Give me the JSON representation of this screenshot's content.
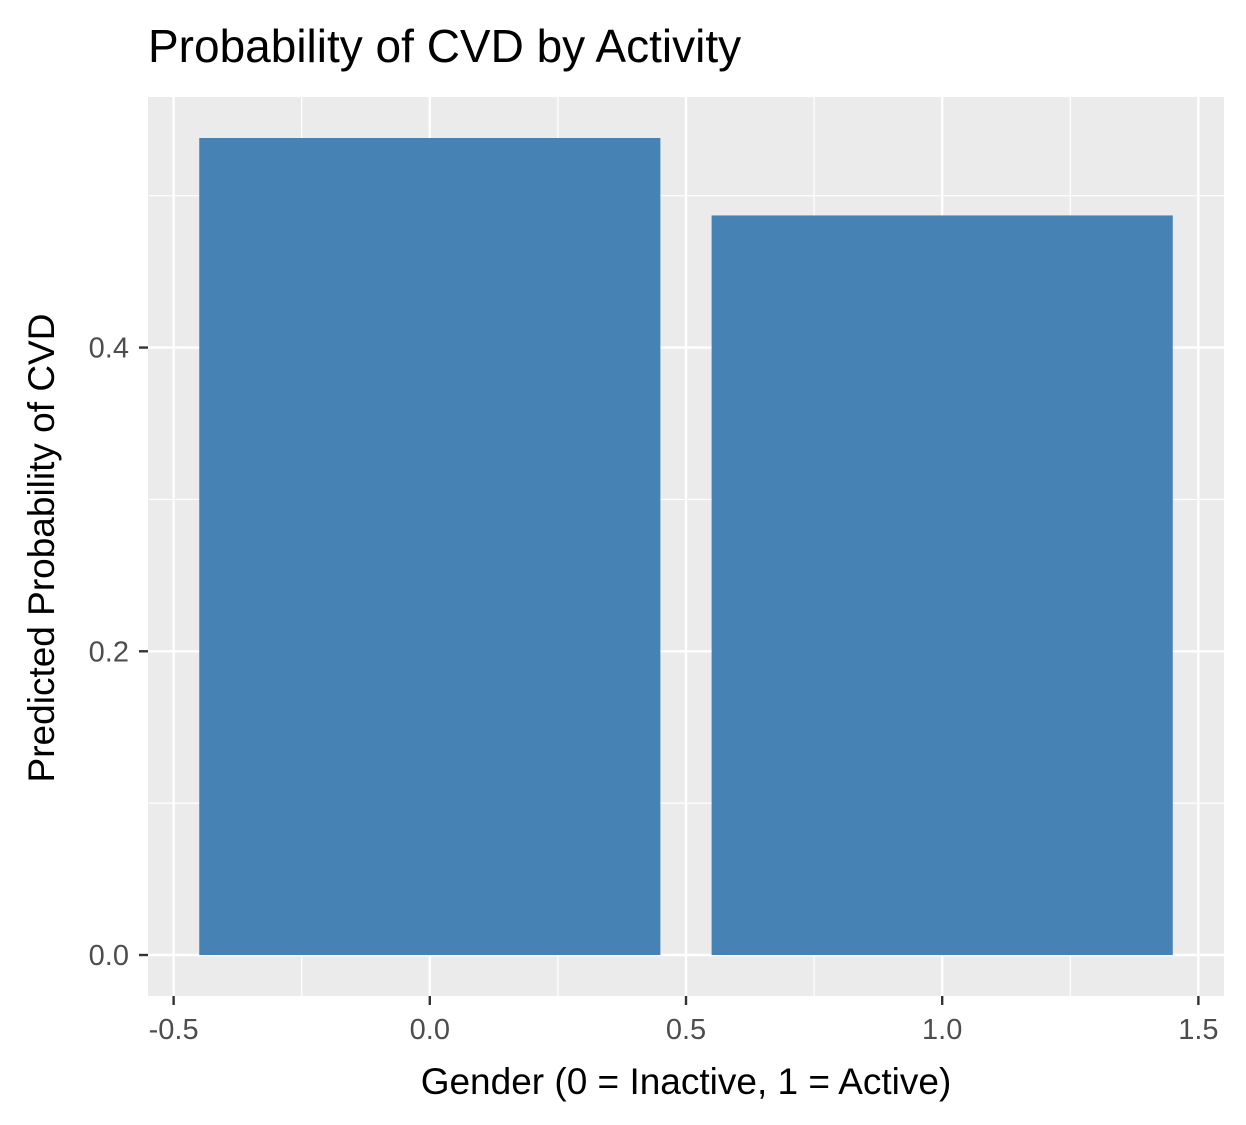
{
  "chart_data": {
    "type": "bar",
    "title": "Probability of CVD by Activity",
    "xlabel": "Gender (0 = Inactive, 1 = Active)",
    "ylabel": "Predicted Probability of CVD",
    "x": [
      0,
      1
    ],
    "values": [
      0.538,
      0.487
    ],
    "bar_width": 0.9,
    "xlim": [
      -0.55,
      1.55
    ],
    "ylim": [
      -0.027,
      0.565
    ],
    "x_ticks": [
      -0.5,
      0.0,
      0.5,
      1.0,
      1.5
    ],
    "x_tick_labels": [
      "-0.5",
      "0.0",
      "0.5",
      "1.0",
      "1.5"
    ],
    "y_ticks": [
      0.0,
      0.2,
      0.4
    ],
    "y_tick_labels": [
      "0.0",
      "0.2",
      "0.4"
    ],
    "grid": true,
    "legend": "none",
    "colors": {
      "bar": "#4682B4",
      "panel_background": "#EBEBEB",
      "grid": "#FFFFFF",
      "tick_text": "#4D4D4D",
      "tick_mark": "#333333"
    }
  }
}
